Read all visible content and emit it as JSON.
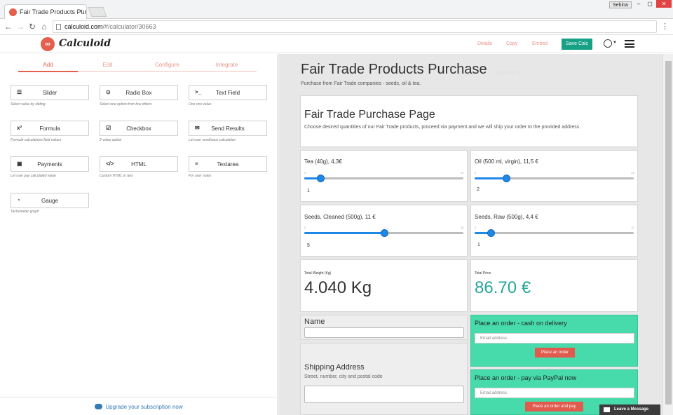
{
  "browser": {
    "tab_title": "Fair Trade Products Purc",
    "url_host": "calculoid.com",
    "url_path": "/#/calculator/30663",
    "user_badge": "Sebina"
  },
  "header": {
    "logo_text": "Calculoid",
    "details_label": "Details",
    "copy_label": "Copy",
    "embed_label": "Embed",
    "save_label": "Save Calc"
  },
  "builder": {
    "tabs": [
      "Add",
      "Edit",
      "Configure",
      "Integrate"
    ],
    "widgets": [
      {
        "icon": "☰",
        "label": "Slider",
        "desc": "Select value by sliding"
      },
      {
        "icon": "⊙",
        "label": "Radio Box",
        "desc": "Select one option from few others"
      },
      {
        "icon": ">_",
        "label": "Text Field",
        "desc": "One row value"
      },
      {
        "icon": "x²",
        "label": "Formula",
        "desc": "Formula calculations field values"
      },
      {
        "icon": "☑",
        "label": "Checkbox",
        "desc": "2-value option"
      },
      {
        "icon": "✉",
        "label": "Send Results",
        "desc": "Let user send/save calculation"
      },
      {
        "icon": "▣",
        "label": "Payments",
        "desc": "Let user pay calculated value"
      },
      {
        "icon": "</>",
        "label": "HTML",
        "desc": "Custom HTML or text"
      },
      {
        "icon": "≡",
        "label": "Textarea",
        "desc": "For user notes"
      },
      {
        "icon": "◔",
        "label": "Gauge",
        "desc": "Tachometer graph"
      }
    ],
    "upgrade_text": "Upgrade your subscription now"
  },
  "calculator": {
    "title": "Fair Trade Products Purchase",
    "stars": "☆☆☆☆☆",
    "subtitle": "Purchase from Fair Trade companies - seeds, oil & tea.",
    "intro_heading": "Fair Trade Purchase Page",
    "intro_text": "Choose desired quantities of our Fair Trade products, proceed via payment and we will ship your order to the provided address.",
    "sliders": [
      {
        "label": "Tea (40g), 4,3€",
        "min": "0",
        "max": "10",
        "value": 1,
        "tick": "1"
      },
      {
        "label": "Oil (500 ml, virgin), 11,5 €",
        "min": "0",
        "max": "10",
        "value": 2,
        "tick": "2"
      },
      {
        "label": "Seeds, Cleaned (500g), 11 €",
        "min": "0",
        "max": "10",
        "value": 5,
        "tick": "5"
      },
      {
        "label": "Seeds, Raw (500g), 4,4 €",
        "min": "0",
        "max": "10",
        "value": 1,
        "tick": "1"
      }
    ],
    "total_weight_label": "Total Weight (Kg)",
    "total_weight_value": "4.040 Kg",
    "total_price_label": "Total Price",
    "total_price_value": "86.70 €",
    "name_label": "Name",
    "shipping_label": "Shipping Address",
    "shipping_help": "Street, number, city and postal code",
    "order_cash_title": "Place an order - cash on delivery",
    "order_cash_email_placeholder": "Email address",
    "order_cash_button": "Place an order",
    "order_paypal_title": "Place an order - pay via PayPal now",
    "order_paypal_email_placeholder": "Email address",
    "order_paypal_button": "Place an order and pay",
    "leave_message": "Leave a Message"
  },
  "colors": {
    "brand": "#e45f4e",
    "save": "#16a085",
    "slider": "#1e88e5",
    "price": "#26a69a",
    "order_card": "#47dbab"
  }
}
